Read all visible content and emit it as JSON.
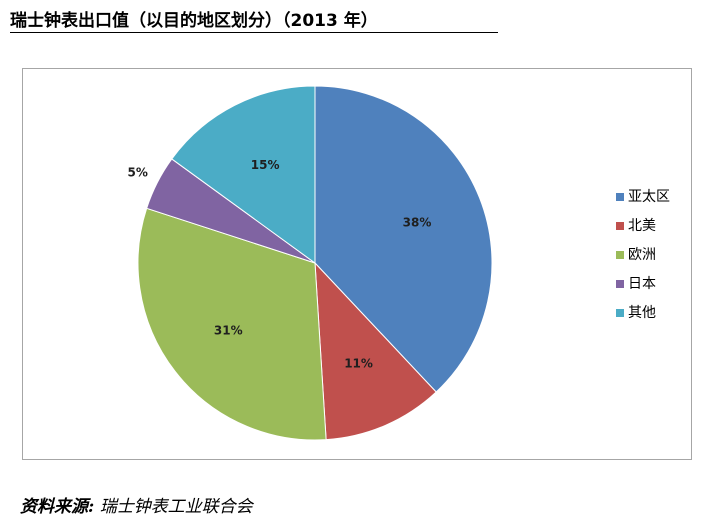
{
  "title": "瑞士钟表出口值（以目的地区划分）（2013 年）",
  "source": {
    "label": "资料来源:",
    "text": "瑞士钟表工业联合会"
  },
  "chart_data": {
    "type": "pie",
    "title": "",
    "categories": [
      "亚太区",
      "北美",
      "欧洲",
      "日本",
      "其他"
    ],
    "values": [
      38,
      11,
      31,
      5,
      15
    ],
    "data_labels": [
      "38%",
      "11%",
      "31%",
      "5%",
      "15%"
    ],
    "colors": [
      "#4f81bd",
      "#c0504d",
      "#9bbb59",
      "#8064a2",
      "#4bacc6"
    ],
    "start_angle": "12 o'clock",
    "direction": "clockwise",
    "legend_position": "right"
  }
}
